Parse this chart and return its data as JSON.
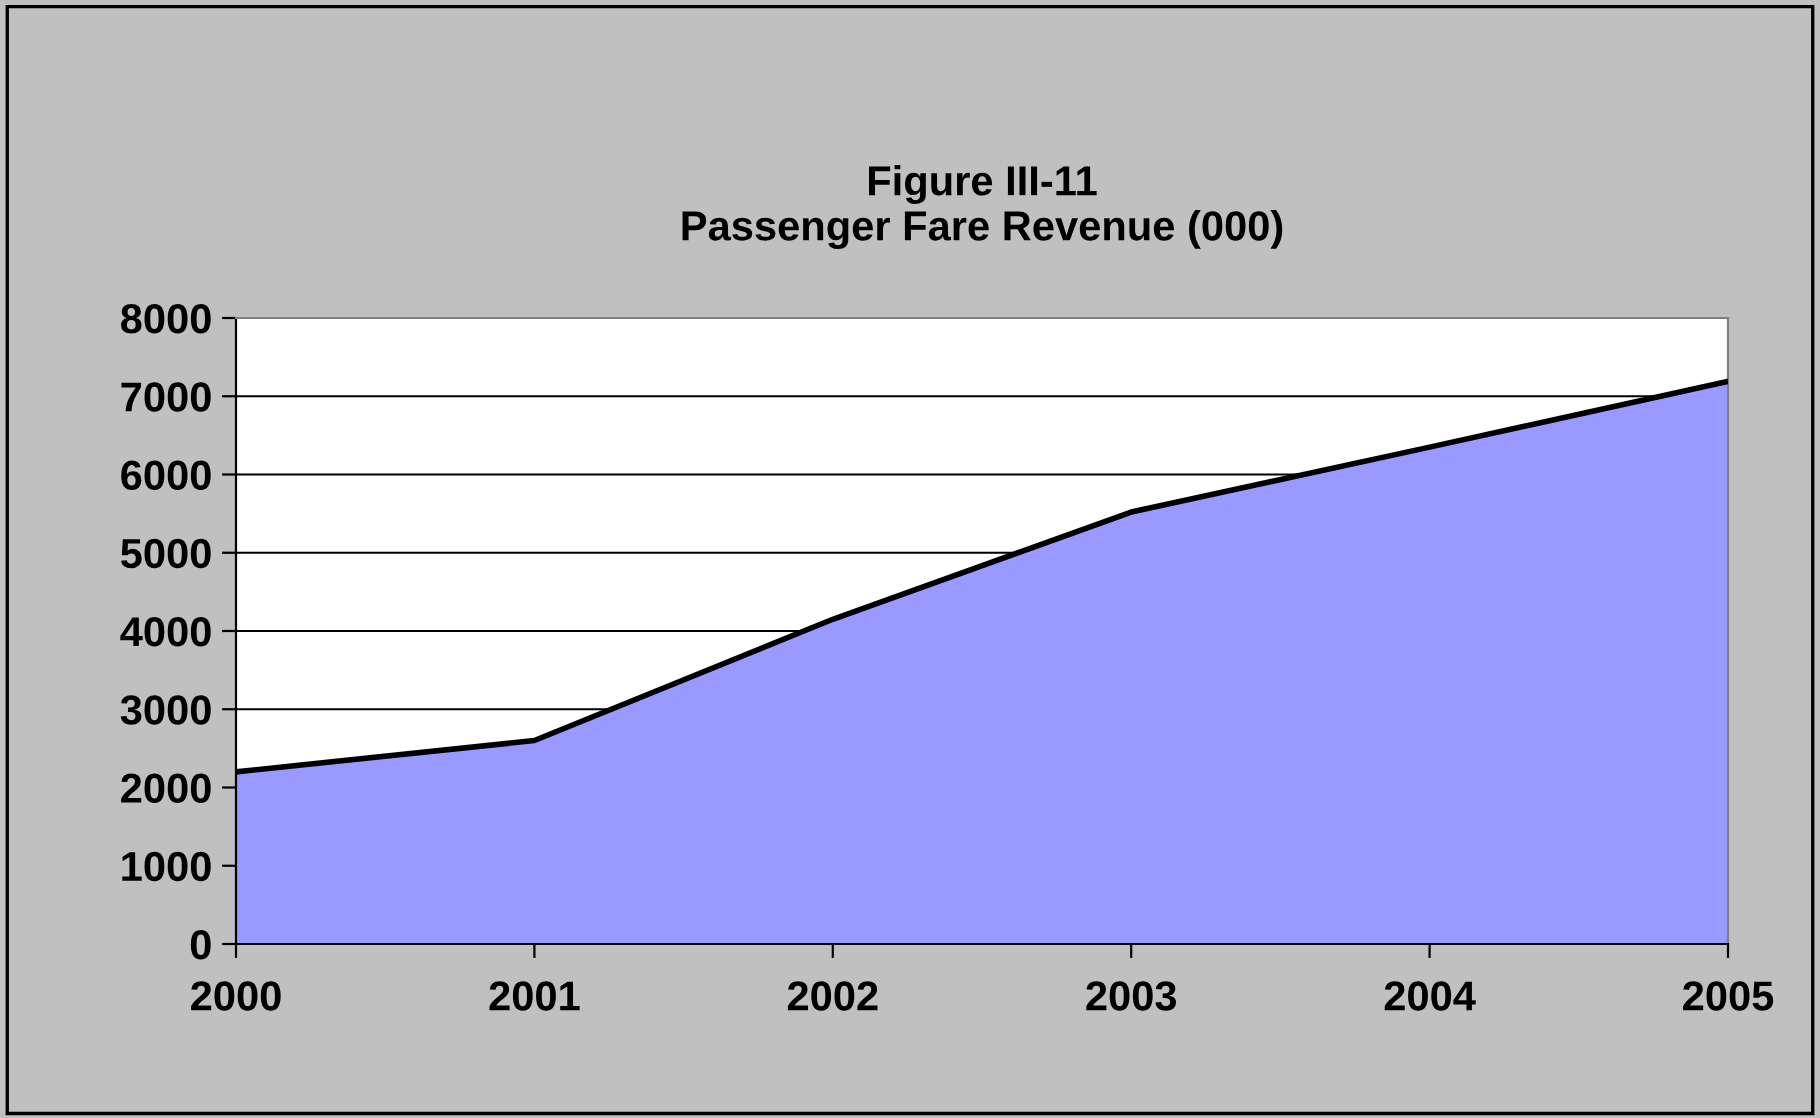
{
  "chart_data": {
    "type": "area",
    "title": "Figure III-11\nPassenger Fare Revenue (000)",
    "categories": [
      "2000",
      "2001",
      "2002",
      "2003",
      "2004",
      "2005"
    ],
    "series": [
      {
        "color": "#9999ff",
        "values": [
          2200,
          2600,
          4150,
          5520,
          6350,
          7190
        ]
      }
    ],
    "ylim": [
      0,
      8000
    ],
    "yticks": [
      0,
      1000,
      2000,
      3000,
      4000,
      5000,
      6000,
      7000,
      8000
    ],
    "grid": "y",
    "legend": false
  }
}
